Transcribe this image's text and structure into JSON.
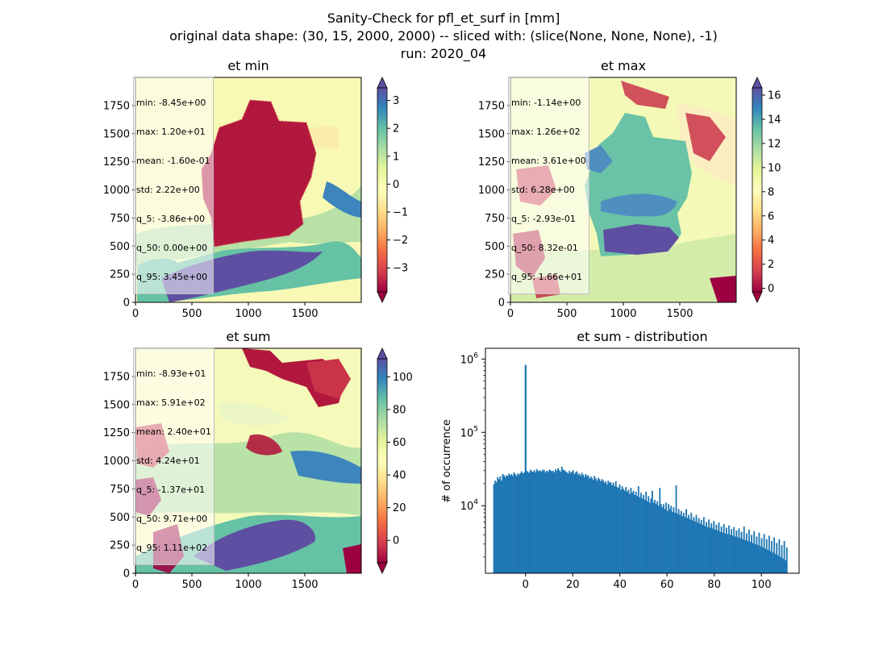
{
  "figure": {
    "suptitle_lines": [
      "Sanity-Check for pfl_et_surf in [mm]",
      "original data shape: (30, 15, 2000, 2000) -- sliced with: (slice(None, None, None), -1)",
      "run: 2020_04"
    ]
  },
  "chart_data": [
    {
      "type": "heatmap",
      "title": "et min",
      "xlim": [
        0,
        2000
      ],
      "ylim": [
        0,
        2000
      ],
      "xticks": [
        0,
        500,
        1000,
        1500
      ],
      "yticks": [
        0,
        250,
        500,
        750,
        1000,
        1250,
        1500,
        1750
      ],
      "colormap": "Spectral",
      "colorbar": {
        "range": [
          -3.86,
          3.45
        ],
        "ticks": [
          -3,
          -2,
          -1,
          0,
          1,
          2,
          3
        ],
        "extend": "both"
      },
      "stats": [
        "min: -8.45e+00",
        "max: 1.20e+01",
        "mean: -1.60e-01",
        "std: 2.22e+00",
        "q_5: -3.86e+00",
        "q_50: 0.00e+00",
        "q_95: 3.45e+00"
      ]
    },
    {
      "type": "heatmap",
      "title": "et max",
      "xlim": [
        0,
        2000
      ],
      "ylim": [
        0,
        2000
      ],
      "xticks": [
        0,
        500,
        1000,
        1500
      ],
      "yticks": [
        0,
        250,
        500,
        750,
        1000,
        1250,
        1500,
        1750
      ],
      "colormap": "Spectral",
      "colorbar": {
        "range": [
          -0.293,
          16.6
        ],
        "ticks": [
          0,
          2,
          4,
          6,
          8,
          10,
          12,
          14,
          16
        ],
        "extend": "both"
      },
      "stats": [
        "min: -1.14e+00",
        "max: 1.26e+02",
        "mean: 3.61e+00",
        "std: 6.28e+00",
        "q_5: -2.93e-01",
        "q_50: 8.32e-01",
        "q_95: 1.66e+01"
      ]
    },
    {
      "type": "heatmap",
      "title": "et sum",
      "xlim": [
        0,
        2000
      ],
      "ylim": [
        0,
        2000
      ],
      "xticks": [
        0,
        500,
        1000,
        1500
      ],
      "yticks": [
        0,
        250,
        500,
        750,
        1000,
        1250,
        1500,
        1750
      ],
      "colormap": "Spectral",
      "colorbar": {
        "range": [
          -13.7,
          111
        ],
        "ticks": [
          0,
          20,
          40,
          60,
          80,
          100
        ],
        "extend": "both"
      },
      "stats": [
        "min: -8.93e+01",
        "max: 5.91e+02",
        "mean: 2.40e+01",
        "std: 4.24e+01",
        "q_5: -1.37e+01",
        "q_50: 9.71e+00",
        "q_95: 1.11e+02"
      ]
    },
    {
      "type": "bar",
      "title": "et sum - distribution",
      "ylabel": "# of occurrence",
      "yscale": "log",
      "xlim": [
        -17,
        116
      ],
      "ylim": [
        1200,
        1400000
      ],
      "xticks": [
        0,
        20,
        40,
        60,
        80,
        100
      ],
      "yticks": [
        {
          "value": 10000,
          "label": "10^4"
        },
        {
          "value": 100000,
          "label": "10^5"
        },
        {
          "value": 1000000,
          "label": "10^6"
        }
      ],
      "color": "#1f77b4",
      "bin_range": [
        -13.7,
        111
      ],
      "spike": {
        "x": 0,
        "count": 830000
      },
      "counts": [
        19500,
        22000,
        21000,
        24500,
        23000,
        25000,
        22000,
        27000,
        26000,
        24500,
        26000,
        25500,
        27500,
        26000,
        27000,
        25500,
        28500,
        27000,
        25500,
        27500,
        26500,
        28000,
        29500,
        27500,
        28500,
        27000,
        30000,
        29000,
        28000,
        31000,
        29500,
        29000,
        30500,
        28500,
        31500,
        30000,
        29500,
        30500,
        29000,
        31000,
        30500,
        28500,
        30000,
        29000,
        31000,
        30500,
        29500,
        30000,
        28500,
        31500,
        30000,
        32500,
        30500,
        29000,
        34000,
        31000,
        30500,
        29500,
        28500,
        27500,
        30000,
        28000,
        29000,
        30500,
        27000,
        28500,
        29500,
        26500,
        27500,
        25500,
        28000,
        26500,
        24500,
        27000,
        25500,
        26000,
        23500,
        25000,
        24000,
        22500,
        25500,
        23500,
        22000,
        24000,
        23000,
        21500,
        23000,
        22000,
        20500,
        21500,
        19500,
        22000,
        20500,
        21000,
        19000,
        20500,
        18500,
        21500,
        18000,
        17500,
        19500,
        16500,
        18500,
        17000,
        16000,
        18000,
        15500,
        16500,
        14500,
        17500,
        15000,
        16000,
        14000,
        15500,
        13500,
        18500,
        13000,
        15000,
        12500,
        14000,
        12000,
        15500,
        11500,
        13500,
        11000,
        12500,
        16000,
        11000,
        12000,
        10500,
        11500,
        10000,
        17500,
        10500,
        9500,
        10500,
        9000,
        11000,
        8500,
        10500,
        9000,
        10000,
        8200,
        9500,
        8000,
        19000,
        7800,
        9000,
        7500,
        8500,
        7200,
        8000,
        7000,
        9000,
        6800,
        7500,
        6500,
        8000,
        6300,
        7000,
        6100,
        7500,
        5900,
        6800,
        5700,
        6400,
        5500,
        7000,
        5300,
        6000,
        5100,
        6500,
        5000,
        5800,
        4900,
        6200,
        4700,
        5500,
        4600,
        5900,
        4400,
        5200,
        4300,
        5600,
        4200,
        5000,
        4100,
        5400,
        4000,
        4800,
        3900,
        5100,
        3800,
        4600,
        3700,
        4900,
        3600,
        4400,
        3500,
        5200,
        3400,
        4200,
        3300,
        4700,
        3200,
        4000,
        3100,
        4500,
        3000,
        3800,
        2900,
        4300,
        2800,
        3600,
        2700,
        4100,
        2600,
        3500,
        2500,
        3900,
        2400,
        3300,
        2300,
        3700,
        2200,
        3100,
        2100,
        3500,
        2000,
        2900,
        1900,
        3300,
        1800,
        2700
      ]
    }
  ]
}
